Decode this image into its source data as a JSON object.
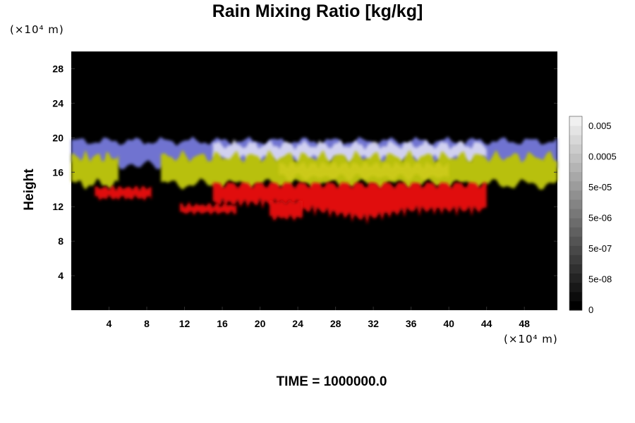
{
  "chart_data": {
    "type": "heatmap",
    "title": "Rain Mixing Ratio [kg/kg]",
    "ylabel": "Height",
    "y_unit": "(×10⁴ m)",
    "x_unit": "(×10⁴ m)",
    "xlim": [
      0,
      51.5
    ],
    "ylim": [
      0,
      30
    ],
    "x_ticks": [
      4,
      8,
      12,
      16,
      20,
      24,
      28,
      32,
      36,
      40,
      44,
      48
    ],
    "y_ticks": [
      4,
      8,
      12,
      16,
      20,
      24,
      28
    ],
    "colorbar_labels": [
      "0",
      "5e-08",
      "5e-07",
      "5e-06",
      "5e-05",
      "0.0005",
      "0.005"
    ],
    "bands": [
      {
        "name": "red",
        "color": "#e01010",
        "y_range": [
          10.5,
          14.5
        ],
        "x_extent": [
          2.5,
          44
        ],
        "note": "rain layer below the green band"
      },
      {
        "name": "green-yellow",
        "color": "#b0c414",
        "y_range": [
          14.5,
          18
        ],
        "x_extent": [
          0,
          51.5
        ]
      },
      {
        "name": "blue-white",
        "color": "#b9bde6",
        "y_range": [
          17,
          20.5
        ],
        "x_extent": [
          0,
          51.5
        ]
      }
    ],
    "footer": "TIME = 1000000.0"
  },
  "colors": {
    "background": "#000000",
    "red": "#e01010",
    "green": "#b8c010",
    "blue": "#6f73d0",
    "white": "#dcdcf4"
  }
}
